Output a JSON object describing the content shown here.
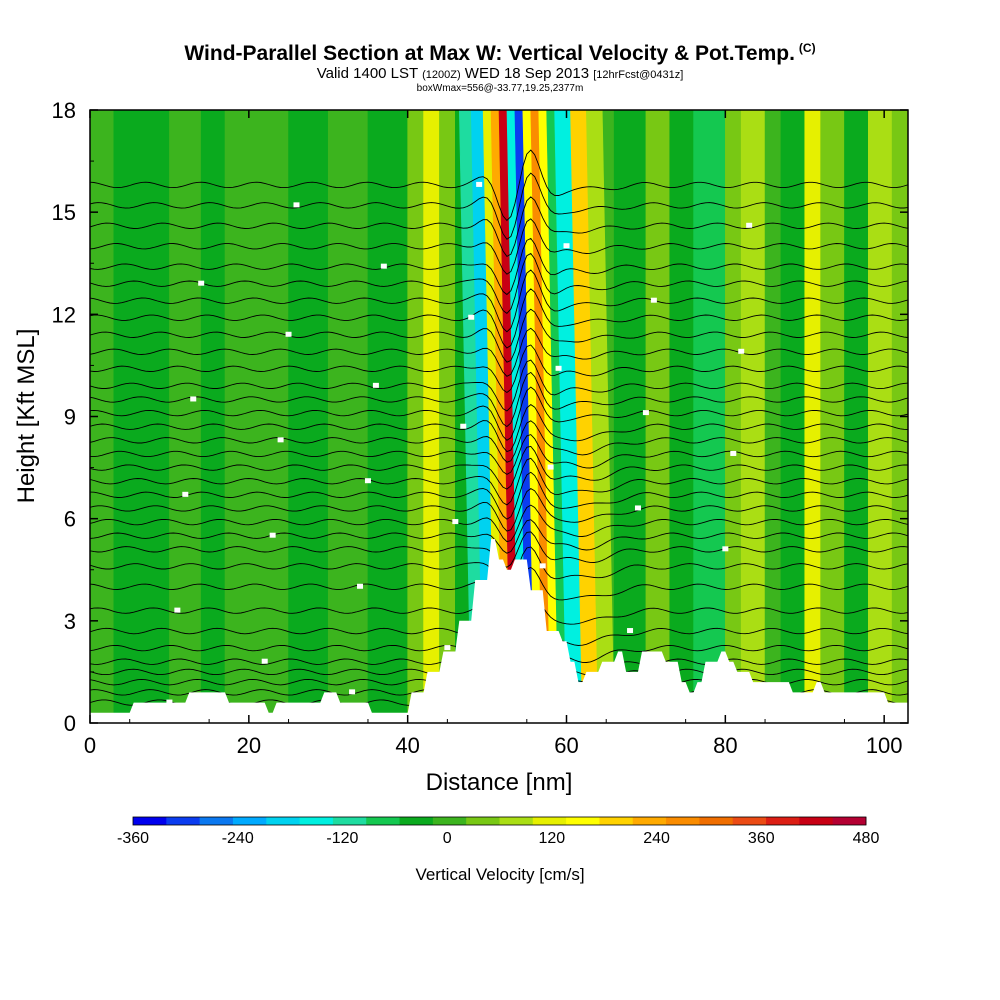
{
  "header": {
    "title": "Wind-Parallel Section at Max W: Vertical Velocity & Pot.Temp.",
    "title_mark": "(C)",
    "valid_prefix": "Valid 1400 LST",
    "valid_utc": "(1200Z)",
    "valid_date": "WED 18 Sep 2013",
    "forecast": "[12hrFcst@0431z]",
    "box_info": "boxWmax=556@-33.77,19.25,2377m"
  },
  "chart_data": {
    "type": "heatmap",
    "title": "Wind-Parallel Section at Max W: Vertical Velocity & Pot.Temp.",
    "xlabel": "Distance [nm]",
    "ylabel": "Height [Kft MSL]",
    "xlim": [
      0,
      103
    ],
    "ylim": [
      0,
      18
    ],
    "x_ticks": [
      "0",
      "20",
      "40",
      "60",
      "80",
      "100"
    ],
    "x_tick_values": [
      0,
      20,
      40,
      60,
      80,
      100
    ],
    "y_ticks": [
      "0",
      "3",
      "6",
      "9",
      "12",
      "15",
      "18"
    ],
    "y_tick_values": [
      0,
      3,
      6,
      9,
      12,
      15,
      18
    ],
    "colorbar": {
      "title": "Vertical Velocity [cm/s]",
      "levels": [
        -360,
        -320,
        -280,
        -240,
        -200,
        -160,
        -120,
        -80,
        -40,
        0,
        40,
        80,
        120,
        160,
        200,
        240,
        280,
        320,
        360,
        400,
        440,
        480
      ],
      "colors": [
        "#0000ee",
        "#0a3cf0",
        "#0a78f0",
        "#00aaff",
        "#00d2f0",
        "#00f0e0",
        "#1edca0",
        "#14c850",
        "#0aaa1e",
        "#3cb41e",
        "#78c814",
        "#aade14",
        "#e6f000",
        "#ffff00",
        "#ffd200",
        "#ffaa00",
        "#fa8c00",
        "#f06e00",
        "#eb4b14",
        "#dc1e14",
        "#c80014",
        "#b40032"
      ],
      "labels": [
        "-360",
        "-240",
        "-120",
        "0",
        "120",
        "240",
        "360",
        "480"
      ]
    },
    "bands": [
      {
        "x0": 0,
        "x1": 3,
        "w": 20
      },
      {
        "x0": 3,
        "x1": 10,
        "w": -20
      },
      {
        "x0": 10,
        "x1": 14,
        "w": 20
      },
      {
        "x0": 14,
        "x1": 17,
        "w": -20
      },
      {
        "x0": 17,
        "x1": 25,
        "w": 20
      },
      {
        "x0": 25,
        "x1": 30,
        "w": -20
      },
      {
        "x0": 30,
        "x1": 35,
        "w": 20
      },
      {
        "x0": 35,
        "x1": 40,
        "w": -20
      },
      {
        "x0": 40,
        "x1": 42,
        "w": 60
      },
      {
        "x0": 42,
        "x1": 44,
        "w": 120
      },
      {
        "x0": 44,
        "x1": 46,
        "w": 40
      },
      {
        "x0": 46,
        "x1": 48,
        "w": -20
      },
      {
        "x0": 48,
        "x1": 49.5,
        "w": -100
      },
      {
        "x0": 49.5,
        "x1": 51,
        "w": -200
      },
      {
        "x0": 51,
        "x1": 52,
        "w": 120
      },
      {
        "x0": 52,
        "x1": 53,
        "w": 240
      },
      {
        "x0": 53,
        "x1": 54,
        "w": 440
      },
      {
        "x0": 54,
        "x1": 55,
        "w": -160
      },
      {
        "x0": 55,
        "x1": 56,
        "w": -300
      },
      {
        "x0": 56,
        "x1": 57,
        "w": 160
      },
      {
        "x0": 57,
        "x1": 58,
        "w": 280
      },
      {
        "x0": 58,
        "x1": 59,
        "w": 160
      },
      {
        "x0": 59,
        "x1": 60,
        "w": -60
      },
      {
        "x0": 60,
        "x1": 62,
        "w": -140
      },
      {
        "x0": 62,
        "x1": 64,
        "w": 200
      },
      {
        "x0": 64,
        "x1": 66,
        "w": 100
      },
      {
        "x0": 66,
        "x1": 70,
        "w": -20
      },
      {
        "x0": 70,
        "x1": 73,
        "w": 60
      },
      {
        "x0": 73,
        "x1": 76,
        "w": -20
      },
      {
        "x0": 76,
        "x1": 80,
        "w": -80
      },
      {
        "x0": 80,
        "x1": 82,
        "w": 40
      },
      {
        "x0": 82,
        "x1": 85,
        "w": 80
      },
      {
        "x0": 85,
        "x1": 87,
        "w": 20
      },
      {
        "x0": 87,
        "x1": 90,
        "w": -20
      },
      {
        "x0": 90,
        "x1": 92,
        "w": 120
      },
      {
        "x0": 92,
        "x1": 95,
        "w": 40
      },
      {
        "x0": 95,
        "x1": 98,
        "w": -20
      },
      {
        "x0": 98,
        "x1": 101,
        "w": 100
      },
      {
        "x0": 101,
        "x1": 103,
        "w": 40
      }
    ],
    "terrain": [
      [
        0,
        0.3
      ],
      [
        5,
        0.3
      ],
      [
        5.5,
        0.6
      ],
      [
        12,
        0.6
      ],
      [
        12.5,
        0.9
      ],
      [
        17,
        0.9
      ],
      [
        17.5,
        0.6
      ],
      [
        22,
        0.6
      ],
      [
        22.5,
        0.3
      ],
      [
        23,
        0.3
      ],
      [
        23.5,
        0.6
      ],
      [
        29,
        0.6
      ],
      [
        29.5,
        0.9
      ],
      [
        31,
        0.9
      ],
      [
        31.5,
        0.6
      ],
      [
        35,
        0.6
      ],
      [
        35.5,
        0.3
      ],
      [
        40,
        0.3
      ],
      [
        40.5,
        0.9
      ],
      [
        42,
        0.9
      ],
      [
        42.5,
        1.5
      ],
      [
        44,
        1.5
      ],
      [
        44.5,
        2.1
      ],
      [
        46,
        2.1
      ],
      [
        46.5,
        3.0
      ],
      [
        48,
        3.0
      ],
      [
        48.5,
        4.2
      ],
      [
        50,
        4.2
      ],
      [
        50.5,
        5.4
      ],
      [
        51,
        5.4
      ],
      [
        51.5,
        4.8
      ],
      [
        52,
        4.8
      ],
      [
        52.5,
        4.5
      ],
      [
        53,
        4.5
      ],
      [
        53.5,
        4.8
      ],
      [
        55,
        4.8
      ],
      [
        55.5,
        3.9
      ],
      [
        57,
        3.9
      ],
      [
        57.5,
        2.7
      ],
      [
        59,
        2.7
      ],
      [
        59.5,
        2.4
      ],
      [
        60,
        2.4
      ],
      [
        60.5,
        1.8
      ],
      [
        61,
        1.8
      ],
      [
        61.5,
        1.2
      ],
      [
        62,
        1.2
      ],
      [
        62.5,
        1.5
      ],
      [
        64,
        1.5
      ],
      [
        64.5,
        1.8
      ],
      [
        66,
        1.8
      ],
      [
        66.5,
        2.1
      ],
      [
        67,
        2.1
      ],
      [
        67.5,
        1.5
      ],
      [
        69,
        1.5
      ],
      [
        69.5,
        2.1
      ],
      [
        72,
        2.1
      ],
      [
        72.5,
        1.8
      ],
      [
        74,
        1.8
      ],
      [
        74.5,
        1.2
      ],
      [
        75,
        1.2
      ],
      [
        75.5,
        0.9
      ],
      [
        76,
        0.9
      ],
      [
        76.5,
        1.2
      ],
      [
        77,
        1.2
      ],
      [
        77.5,
        1.8
      ],
      [
        79,
        1.8
      ],
      [
        79.5,
        2.1
      ],
      [
        80,
        2.1
      ],
      [
        80.5,
        1.8
      ],
      [
        81,
        1.8
      ],
      [
        81.5,
        1.5
      ],
      [
        83,
        1.5
      ],
      [
        83.5,
        1.2
      ],
      [
        88,
        1.2
      ],
      [
        88.5,
        0.9
      ],
      [
        91,
        0.9
      ],
      [
        91.5,
        1.2
      ],
      [
        92,
        1.2
      ],
      [
        92.5,
        0.9
      ],
      [
        100,
        0.9
      ],
      [
        100.5,
        0.6
      ],
      [
        103,
        0.6
      ]
    ],
    "isentropes": {
      "count": 34,
      "base_heights": [
        0.6,
        0.9,
        1.2,
        1.5,
        1.8,
        2.2,
        2.7,
        3.3,
        4.0,
        4.6,
        5.1,
        5.5,
        5.9,
        6.3,
        6.7,
        7.1,
        7.5,
        7.9,
        8.3,
        8.7,
        9.1,
        9.5,
        9.9,
        10.4,
        10.9,
        11.4,
        11.9,
        12.4,
        12.9,
        13.4,
        14.0,
        14.6,
        15.2,
        15.8
      ],
      "wave_center_nm": 54,
      "wave_amplitude_kft": 1.2
    }
  }
}
